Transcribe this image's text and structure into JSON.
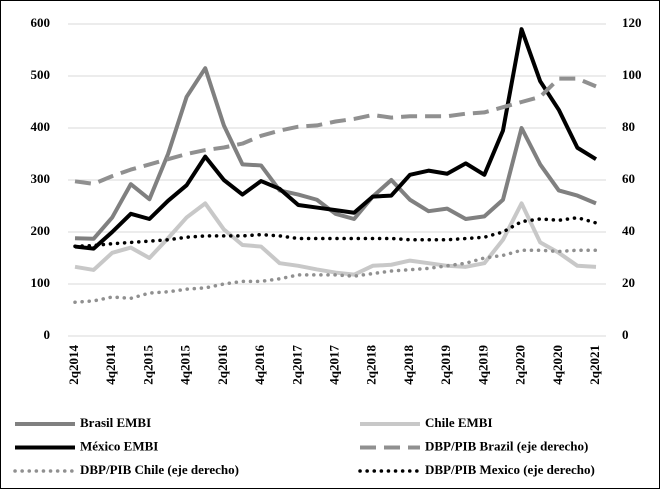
{
  "chart_data": {
    "type": "line",
    "categories": [
      "2q2014",
      null,
      "4q2014",
      null,
      "2q2015",
      null,
      "4q2015",
      null,
      "2q2016",
      null,
      "4q2016",
      null,
      "2q2017",
      null,
      "4q2017",
      null,
      "2q2018",
      null,
      "4q2018",
      null,
      "2q2019",
      null,
      "4q2019",
      null,
      "2q2020",
      null,
      "4q2020",
      null,
      "2q2021"
    ],
    "series": [
      {
        "name": "Brasil EMBI",
        "color": "#808080",
        "dash": "solid",
        "values": [
          188,
          187,
          228,
          292,
          263,
          350,
          460,
          515,
          405,
          330,
          328,
          280,
          272,
          262,
          235,
          225,
          268,
          300,
          262,
          240,
          245,
          225,
          230,
          262,
          400,
          330,
          280,
          270,
          255
        ]
      },
      {
        "name": "Chile EMBI",
        "color": "#c8c8c8",
        "dash": "solid",
        "values": [
          133,
          127,
          160,
          170,
          150,
          188,
          228,
          255,
          205,
          175,
          172,
          140,
          135,
          128,
          122,
          118,
          135,
          137,
          145,
          140,
          135,
          133,
          140,
          185,
          255,
          180,
          160,
          135,
          133
        ]
      },
      {
        "name": "México EMBI",
        "color": "#000000",
        "dash": "solid",
        "values": [
          172,
          168,
          200,
          235,
          225,
          260,
          290,
          345,
          300,
          272,
          298,
          283,
          252,
          247,
          242,
          237,
          268,
          270,
          310,
          318,
          312,
          332,
          310,
          395,
          590,
          490,
          435,
          362,
          340
        ]
      },
      {
        "name": "DBP/PIB Brazil (eje derecho)",
        "color": "#909090",
        "dash": "dashed",
        "axis": "y2",
        "values": [
          59.5,
          58.5,
          61.5,
          64,
          66,
          68,
          70,
          71.5,
          72.5,
          74,
          77,
          79,
          80.5,
          81,
          82.5,
          83.5,
          85,
          84,
          84.5,
          84.5,
          84.5,
          85.5,
          86,
          88,
          90,
          92,
          99,
          99,
          96
        ]
      },
      {
        "name": "DBP/PIB Chile (eje derecho)",
        "color": "#909090",
        "dash": "dotted",
        "axis": "y2",
        "values": [
          13,
          13.5,
          15,
          14.5,
          16.5,
          17,
          18,
          18.5,
          20,
          21,
          21,
          22,
          23.5,
          23.5,
          23.5,
          23,
          24,
          25,
          25.5,
          26,
          27,
          28,
          30,
          31,
          33,
          33,
          32.5,
          33,
          33
        ]
      },
      {
        "name": "DBP/PIB Mexico (eje derecho)",
        "color": "#000000",
        "dash": "dotted",
        "axis": "y2",
        "values": [
          34.5,
          34.8,
          35.5,
          36,
          36.5,
          37,
          38,
          38.5,
          38.5,
          38.5,
          39,
          38.5,
          37.5,
          37.5,
          37.5,
          37.5,
          37.5,
          37.5,
          37,
          37,
          37,
          37.5,
          38,
          40,
          44,
          45,
          44.5,
          45.5,
          43.5
        ]
      }
    ],
    "ylim": [
      0,
      600
    ],
    "yticks": [
      0,
      100,
      200,
      300,
      400,
      500,
      600
    ],
    "y2lim": [
      0,
      120
    ],
    "y2ticks": [
      0,
      20,
      40,
      60,
      80,
      100,
      120
    ],
    "grid": true
  }
}
